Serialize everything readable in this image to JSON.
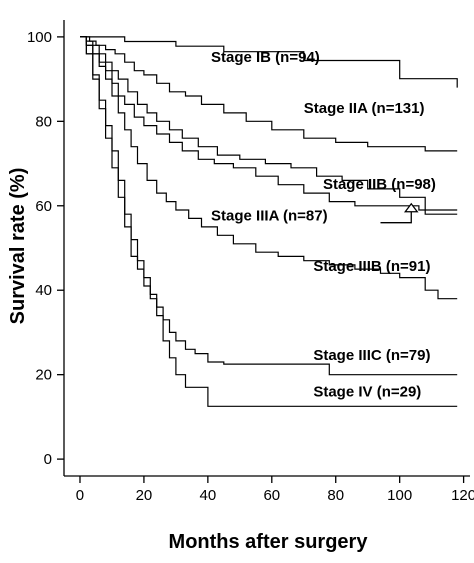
{
  "chart_data": {
    "type": "line",
    "xlabel": "Months after surgery",
    "ylabel": "Survival rate (%)",
    "xlim": [
      -5,
      122
    ],
    "ylim": [
      -4,
      104
    ],
    "xticks": [
      0,
      20,
      40,
      60,
      80,
      100,
      120
    ],
    "yticks": [
      0,
      20,
      40,
      60,
      80,
      100
    ],
    "grid": false,
    "legend": "inline labels next to curves",
    "series": [
      {
        "name": "Stage IB (n=94)",
        "x": [
          0,
          3,
          8,
          14,
          30,
          45,
          70,
          100,
          117,
          118
        ],
        "y": [
          100,
          100,
          100,
          98.9,
          97.8,
          96.5,
          94.4,
          90.1,
          90.1,
          88
        ]
      },
      {
        "name": "Stage IIA (n=131)",
        "x": [
          0,
          1,
          3,
          5,
          8,
          11,
          14,
          17,
          20,
          24,
          28,
          33,
          38,
          45,
          52,
          60,
          70,
          80,
          90,
          100,
          108,
          118
        ],
        "y": [
          100,
          100,
          99,
          98,
          97,
          96,
          94,
          92,
          91,
          89,
          87,
          86,
          84,
          82,
          80,
          78,
          76,
          75,
          74,
          74,
          73,
          73
        ]
      },
      {
        "name": "Stage IIB (n=98)",
        "x": [
          0,
          2,
          4,
          6,
          8,
          10,
          12,
          15,
          18,
          21,
          24,
          28,
          32,
          37,
          43,
          50,
          58,
          66,
          74,
          82,
          90,
          100,
          108,
          118
        ],
        "y": [
          100,
          99,
          98,
          96,
          94,
          92,
          90,
          87,
          84,
          82,
          80,
          78,
          76,
          74,
          72,
          71,
          70,
          69,
          67,
          66,
          64,
          62,
          59,
          59
        ]
      },
      {
        "name": "Stage IIIA (n=87)",
        "x": [
          0,
          2,
          4,
          6,
          8,
          10,
          12,
          14,
          17,
          20,
          24,
          28,
          32,
          37,
          42,
          48,
          55,
          62,
          70,
          78,
          86,
          94,
          100,
          106,
          108,
          118
        ],
        "y": [
          100,
          98,
          96,
          94,
          92,
          89,
          86,
          84,
          81,
          79,
          77,
          75,
          73,
          71,
          70,
          69,
          67,
          65,
          63,
          61,
          60,
          60,
          60,
          59,
          58,
          58
        ]
      },
      {
        "name": "Stage IIIB (n=91)",
        "x": [
          0,
          2,
          4,
          6,
          8,
          10,
          12,
          14,
          16,
          18,
          21,
          24,
          27,
          30,
          34,
          38,
          43,
          48,
          55,
          62,
          70,
          78,
          86,
          94,
          100,
          108,
          112,
          118
        ],
        "y": [
          100,
          98,
          96,
          93,
          90,
          86,
          82,
          78,
          74,
          70,
          66,
          63,
          61,
          59,
          57,
          55,
          53,
          51,
          49,
          48,
          47,
          46,
          45,
          44,
          43,
          40,
          38,
          38
        ]
      },
      {
        "name": "Stage IIIC (n=79)",
        "x": [
          0,
          2,
          4,
          6,
          8,
          10,
          12,
          14,
          16,
          18,
          20,
          22,
          24,
          26,
          28,
          30,
          33,
          36,
          40,
          45,
          55,
          65,
          77,
          78,
          90,
          118
        ],
        "y": [
          100,
          96,
          91,
          85,
          79,
          73,
          66,
          58,
          52,
          47,
          43,
          39,
          36,
          33,
          30,
          28,
          26,
          25,
          23,
          22.5,
          22.5,
          22.5,
          22.5,
          20,
          20,
          20
        ]
      },
      {
        "name": "Stage IV (n=29)",
        "x": [
          0,
          2,
          4,
          6,
          8,
          10,
          12,
          14,
          16,
          18,
          20,
          22,
          24,
          26,
          28,
          30,
          33,
          36,
          39,
          40,
          60,
          118
        ],
        "y": [
          100,
          96,
          90,
          83,
          76,
          69,
          62,
          55,
          48,
          45,
          41,
          38,
          34,
          28,
          24,
          20,
          17,
          17,
          17,
          12.5,
          12.5,
          12.5
        ]
      }
    ],
    "labels": [
      {
        "text": "Stage IB (n=94)",
        "anchor": [
          58,
          94
        ],
        "align": "middle"
      },
      {
        "text": "Stage IIA (n=131)",
        "anchor": [
          70,
          82
        ],
        "align": "start"
      },
      {
        "text": "Stage IIB (n=98)",
        "anchor": [
          76,
          64
        ],
        "align": "start"
      },
      {
        "text": "Stage IIIA (n=87)",
        "anchor": [
          41,
          56.5
        ],
        "align": "start"
      },
      {
        "text": "Stage IIIB (n=91)",
        "anchor": [
          73,
          44.5
        ],
        "align": "start"
      },
      {
        "text": "Stage IIIC (n=79)",
        "anchor": [
          73,
          23.5
        ],
        "align": "start"
      },
      {
        "text": "Stage IV (n=29)",
        "anchor": [
          73,
          14.8
        ],
        "align": "start"
      }
    ],
    "arrow": {
      "from": [
        94,
        56
      ],
      "to": [
        103,
        60
      ]
    }
  }
}
